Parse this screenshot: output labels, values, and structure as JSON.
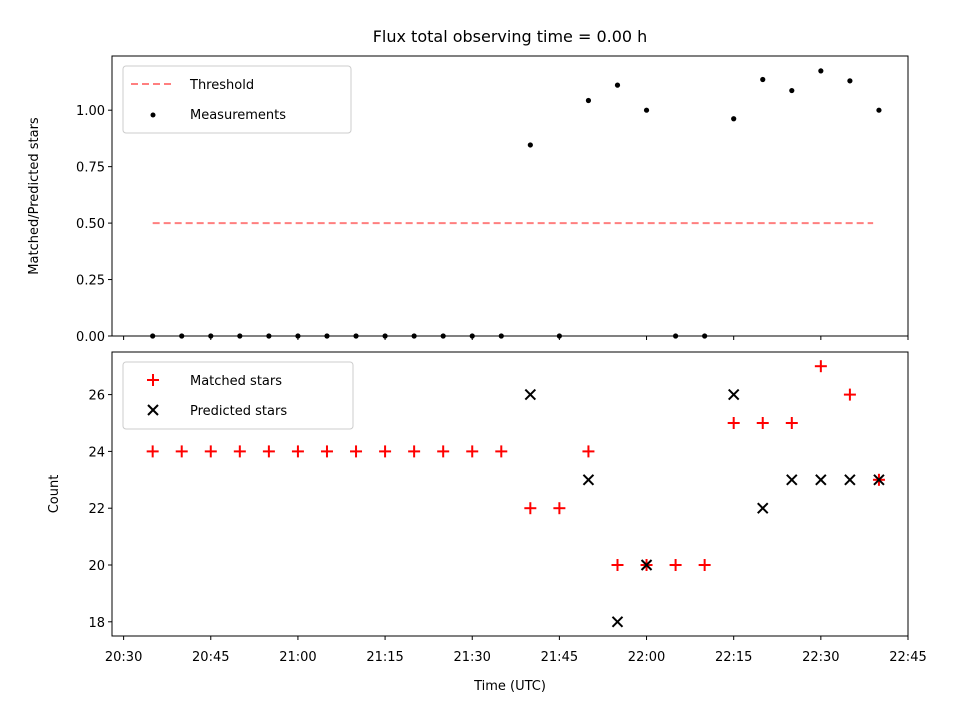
{
  "chart_data": [
    {
      "type": "scatter",
      "title": "Flux total observing time = 0.00 h",
      "ylabel": "Matched/Predicted stars",
      "xlabel": "",
      "xlim": [
        "20:28",
        "22:45"
      ],
      "ylim": [
        0,
        1.24
      ],
      "yticks": [
        "0.00",
        "0.25",
        "0.50",
        "0.75",
        "1.00"
      ],
      "legend_position": "upper-left",
      "series": [
        {
          "name": "Threshold",
          "kind": "dashed-line",
          "color": "#ff7f7f",
          "points": [
            [
              "20:35",
              0.5
            ],
            [
              "22:39",
              0.5
            ]
          ]
        },
        {
          "name": "Measurements",
          "kind": "dot",
          "color": "#000000",
          "points": [
            [
              "20:35",
              0
            ],
            [
              "20:40",
              0
            ],
            [
              "20:45",
              0
            ],
            [
              "20:50",
              0
            ],
            [
              "20:55",
              0
            ],
            [
              "21:00",
              0
            ],
            [
              "21:05",
              0
            ],
            [
              "21:10",
              0
            ],
            [
              "21:15",
              0
            ],
            [
              "21:20",
              0
            ],
            [
              "21:25",
              0
            ],
            [
              "21:30",
              0
            ],
            [
              "21:35",
              0
            ],
            [
              "21:40",
              0.846
            ],
            [
              "21:45",
              0
            ],
            [
              "21:50",
              1.043
            ],
            [
              "21:55",
              1.111
            ],
            [
              "22:00",
              1.0
            ],
            [
              "22:05",
              0
            ],
            [
              "22:10",
              0
            ],
            [
              "22:15",
              0.962
            ],
            [
              "22:20",
              1.136
            ],
            [
              "22:25",
              1.087
            ],
            [
              "22:30",
              1.174
            ],
            [
              "22:35",
              1.13
            ],
            [
              "22:40",
              1.0
            ]
          ]
        }
      ]
    },
    {
      "type": "scatter",
      "title": "",
      "ylabel": "Count",
      "xlabel": "Time (UTC)",
      "xlim": [
        "20:28",
        "22:45"
      ],
      "ylim": [
        17.5,
        27.5
      ],
      "yticks": [
        "18",
        "20",
        "22",
        "24",
        "26"
      ],
      "xticks": [
        "20:30",
        "20:45",
        "21:00",
        "21:15",
        "21:30",
        "21:45",
        "22:00",
        "22:15",
        "22:30",
        "22:45"
      ],
      "legend_position": "upper-left",
      "series": [
        {
          "name": "Matched stars",
          "kind": "plus",
          "color": "#ff0000",
          "points": [
            [
              "20:35",
              24
            ],
            [
              "20:40",
              24
            ],
            [
              "20:45",
              24
            ],
            [
              "20:50",
              24
            ],
            [
              "20:55",
              24
            ],
            [
              "21:00",
              24
            ],
            [
              "21:05",
              24
            ],
            [
              "21:10",
              24
            ],
            [
              "21:15",
              24
            ],
            [
              "21:20",
              24
            ],
            [
              "21:25",
              24
            ],
            [
              "21:30",
              24
            ],
            [
              "21:35",
              24
            ],
            [
              "21:40",
              22
            ],
            [
              "21:45",
              22
            ],
            [
              "21:50",
              24
            ],
            [
              "21:55",
              20
            ],
            [
              "22:00",
              20
            ],
            [
              "22:05",
              20
            ],
            [
              "22:10",
              20
            ],
            [
              "22:15",
              25
            ],
            [
              "22:20",
              25
            ],
            [
              "22:25",
              25
            ],
            [
              "22:30",
              27
            ],
            [
              "22:35",
              26
            ],
            [
              "22:40",
              23
            ]
          ]
        },
        {
          "name": "Predicted stars",
          "kind": "x",
          "color": "#000000",
          "points": [
            [
              "21:40",
              26
            ],
            [
              "21:50",
              23
            ],
            [
              "21:55",
              18
            ],
            [
              "22:00",
              20
            ],
            [
              "22:15",
              26
            ],
            [
              "22:20",
              22
            ],
            [
              "22:25",
              23
            ],
            [
              "22:30",
              23
            ],
            [
              "22:35",
              23
            ],
            [
              "22:40",
              23
            ]
          ]
        }
      ]
    }
  ]
}
